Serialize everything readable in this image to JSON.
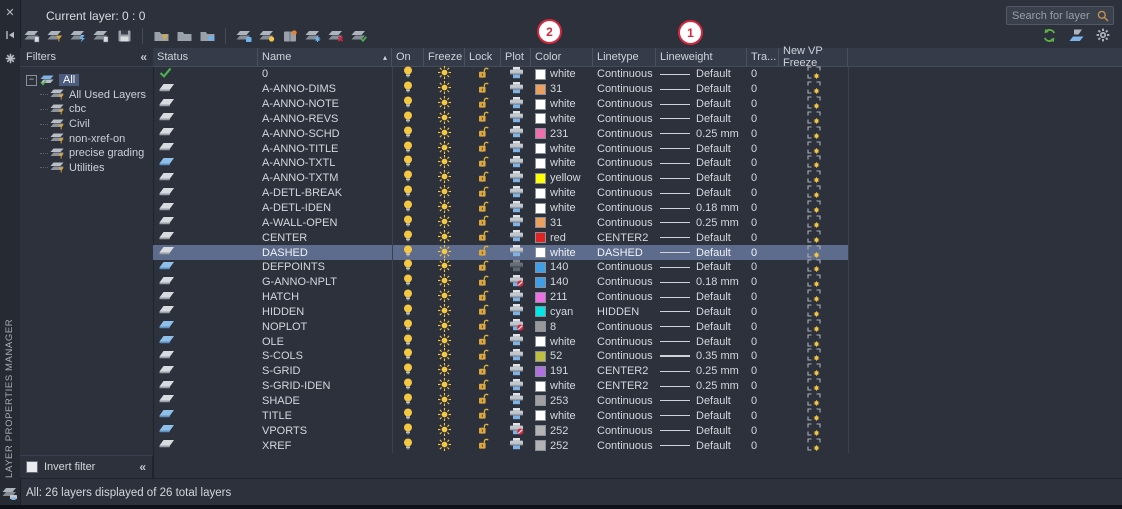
{
  "panel": {
    "vertical_title": "LAYER PROPERTIES MANAGER",
    "current_layer_label": "Current layer: 0 : 0",
    "search_placeholder": "Search for layer",
    "status_bar_text": "All: 26 layers displayed of 26 total layers",
    "collapse_glyph": "«",
    "expand_glyph": "−"
  },
  "strip_icons": [
    "close-icon",
    "auto-hide-pin-icon",
    "properties-icon"
  ],
  "toolbar": {
    "left_icons": [
      "layer-walk-icon",
      "layer-match-icon",
      "layer-isolate-icon",
      "layer-merge-icon",
      "save-layer-state-icon"
    ],
    "mid_icons": [
      "new-property-filter-icon",
      "new-group-filter-icon",
      "layer-states-manager-icon"
    ],
    "new_icons": [
      "layer-settings-icon",
      "new-layer-icon",
      "layer-states-icon",
      "new-layer-vp-frozen-icon",
      "delete-layer-icon",
      "set-current-layer-icon"
    ],
    "right_icons": [
      "refresh-icon",
      "isolate-settings-icon",
      "settings-icon"
    ]
  },
  "annotations": [
    {
      "label": "2",
      "target": "color-column"
    },
    {
      "label": "1",
      "target": "lineweight-column"
    }
  ],
  "filters": {
    "header": "Filters",
    "invert_label": "Invert filter",
    "root": "All",
    "items": [
      "All Used Layers",
      "cbc",
      "Civil",
      "non-xref-on",
      "precise grading",
      "Utilities"
    ]
  },
  "palette": {
    "selection": "#5D6C8C",
    "bulb_yellow": "#F5C742",
    "lock_gold": "#DCA73E",
    "current_check_green": "#4CB050",
    "badge_red": "#D6273C",
    "refresh_green": "#5FB346",
    "status_blue": "#8EC0EA",
    "status_gray": "#D8DBDF"
  },
  "table": {
    "columns": [
      "Status",
      "Name",
      "On",
      "Freeze",
      "Lock",
      "Plot",
      "Color",
      "Linetype",
      "Lineweight",
      "Tra...",
      "New VP Freeze"
    ],
    "sort_asc_glyph": "▴",
    "rows": [
      {
        "name": "0",
        "status": "current",
        "selected": false,
        "color_name": "white",
        "color_hex": "#FFFFFF",
        "linetype": "Continuous",
        "lineweight": "Default",
        "trans": "0",
        "plot": "on"
      },
      {
        "name": "A-ANNO-DIMS",
        "status": "gray",
        "selected": false,
        "color_name": "31",
        "color_hex": "#ED9F5E",
        "linetype": "Continuous",
        "lineweight": "Default",
        "trans": "0",
        "plot": "on"
      },
      {
        "name": "A-ANNO-NOTE",
        "status": "gray",
        "selected": false,
        "color_name": "white",
        "color_hex": "#FFFFFF",
        "linetype": "Continuous",
        "lineweight": "Default",
        "trans": "0",
        "plot": "on"
      },
      {
        "name": "A-ANNO-REVS",
        "status": "gray",
        "selected": false,
        "color_name": "white",
        "color_hex": "#FFFFFF",
        "linetype": "Continuous",
        "lineweight": "Default",
        "trans": "0",
        "plot": "on"
      },
      {
        "name": "A-ANNO-SCHD",
        "status": "gray",
        "selected": false,
        "color_name": "231",
        "color_hex": "#F06EAE",
        "linetype": "Continuous",
        "lineweight": "0.25 mm",
        "trans": "0",
        "plot": "on"
      },
      {
        "name": "A-ANNO-TITLE",
        "status": "gray",
        "selected": false,
        "color_name": "white",
        "color_hex": "#FFFFFF",
        "linetype": "Continuous",
        "lineweight": "Default",
        "trans": "0",
        "plot": "on"
      },
      {
        "name": "A-ANNO-TXTL",
        "status": "blue",
        "selected": false,
        "color_name": "white",
        "color_hex": "#FFFFFF",
        "linetype": "Continuous",
        "lineweight": "Default",
        "trans": "0",
        "plot": "on"
      },
      {
        "name": "A-ANNO-TXTM",
        "status": "gray",
        "selected": false,
        "color_name": "yellow",
        "color_hex": "#FFFF00",
        "linetype": "Continuous",
        "lineweight": "Default",
        "trans": "0",
        "plot": "on"
      },
      {
        "name": "A-DETL-BREAK",
        "status": "gray",
        "selected": false,
        "color_name": "white",
        "color_hex": "#FFFFFF",
        "linetype": "Continuous",
        "lineweight": "Default",
        "trans": "0",
        "plot": "on"
      },
      {
        "name": "A-DETL-IDEN",
        "status": "gray",
        "selected": false,
        "color_name": "white",
        "color_hex": "#FFFFFF",
        "linetype": "Continuous",
        "lineweight": "0.18 mm",
        "trans": "0",
        "plot": "on"
      },
      {
        "name": "A-WALL-OPEN",
        "status": "gray",
        "selected": false,
        "color_name": "31",
        "color_hex": "#ED9F5E",
        "linetype": "Continuous",
        "lineweight": "0.25 mm",
        "trans": "0",
        "plot": "on"
      },
      {
        "name": "CENTER",
        "status": "gray",
        "selected": false,
        "color_name": "red",
        "color_hex": "#E32222",
        "linetype": "CENTER2",
        "lineweight": "Default",
        "trans": "0",
        "plot": "on"
      },
      {
        "name": "DASHED",
        "status": "gray",
        "selected": true,
        "color_name": "white",
        "color_hex": "#FFFFFF",
        "linetype": "DASHED",
        "lineweight": "Default",
        "trans": "0",
        "plot": "on"
      },
      {
        "name": "DEFPOINTS",
        "status": "blue",
        "selected": false,
        "color_name": "140",
        "color_hex": "#3F9EE8",
        "linetype": "Continuous",
        "lineweight": "Default",
        "trans": "0",
        "plot": "off"
      },
      {
        "name": "G-ANNO-NPLT",
        "status": "gray",
        "selected": false,
        "color_name": "140",
        "color_hex": "#3F9EE8",
        "linetype": "Continuous",
        "lineweight": "0.18 mm",
        "trans": "0",
        "plot": "no"
      },
      {
        "name": "HATCH",
        "status": "gray",
        "selected": false,
        "color_name": "211",
        "color_hex": "#EF6FE5",
        "linetype": "Continuous",
        "lineweight": "Default",
        "trans": "0",
        "plot": "on"
      },
      {
        "name": "HIDDEN",
        "status": "gray",
        "selected": false,
        "color_name": "cyan",
        "color_hex": "#00E6E6",
        "linetype": "HIDDEN",
        "lineweight": "Default",
        "trans": "0",
        "plot": "on"
      },
      {
        "name": "NOPLOT",
        "status": "blue",
        "selected": false,
        "color_name": "8",
        "color_hex": "#999999",
        "linetype": "Continuous",
        "lineweight": "Default",
        "trans": "0",
        "plot": "no"
      },
      {
        "name": "OLE",
        "status": "blue",
        "selected": false,
        "color_name": "white",
        "color_hex": "#FFFFFF",
        "linetype": "Continuous",
        "lineweight": "Default",
        "trans": "0",
        "plot": "on"
      },
      {
        "name": "S-COLS",
        "status": "gray",
        "selected": false,
        "color_name": "52",
        "color_hex": "#BEBE3F",
        "linetype": "Continuous",
        "lineweight": "0.35 mm",
        "trans": "0",
        "plot": "on"
      },
      {
        "name": "S-GRID",
        "status": "gray",
        "selected": false,
        "color_name": "191",
        "color_hex": "#B070E0",
        "linetype": "CENTER2",
        "lineweight": "0.25 mm",
        "trans": "0",
        "plot": "on"
      },
      {
        "name": "S-GRID-IDEN",
        "status": "gray",
        "selected": false,
        "color_name": "white",
        "color_hex": "#FFFFFF",
        "linetype": "CENTER2",
        "lineweight": "0.25 mm",
        "trans": "0",
        "plot": "on"
      },
      {
        "name": "SHADE",
        "status": "gray",
        "selected": false,
        "color_name": "253",
        "color_hex": "#A0A0A0",
        "linetype": "Continuous",
        "lineweight": "Default",
        "trans": "0",
        "plot": "on"
      },
      {
        "name": "TITLE",
        "status": "blue",
        "selected": false,
        "color_name": "white",
        "color_hex": "#FFFFFF",
        "linetype": "Continuous",
        "lineweight": "Default",
        "trans": "0",
        "plot": "on"
      },
      {
        "name": "VPORTS",
        "status": "blue",
        "selected": false,
        "color_name": "252",
        "color_hex": "#B3B3B3",
        "linetype": "Continuous",
        "lineweight": "Default",
        "trans": "0",
        "plot": "no"
      },
      {
        "name": "XREF",
        "status": "gray",
        "selected": false,
        "color_name": "252",
        "color_hex": "#B3B3B3",
        "linetype": "Continuous",
        "lineweight": "Default",
        "trans": "0",
        "plot": "on"
      }
    ]
  }
}
